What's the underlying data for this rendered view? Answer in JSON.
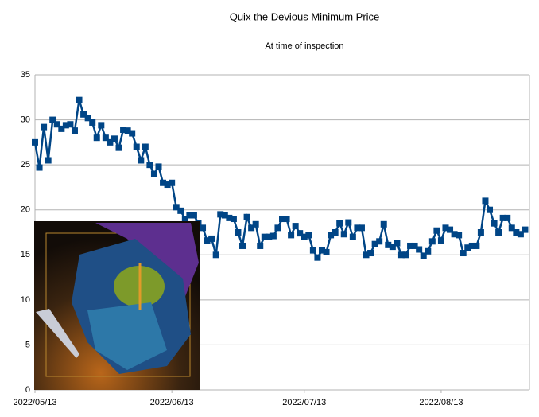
{
  "chart_data": {
    "type": "line",
    "title": "Quix the Devious Minimum Price",
    "subtitle": "At time of inspection",
    "x": [
      "2022/05/13",
      "2022/05/14",
      "2022/05/15",
      "2022/05/16",
      "2022/05/17",
      "2022/05/18",
      "2022/05/19",
      "2022/05/20",
      "2022/05/21",
      "2022/05/22",
      "2022/05/23",
      "2022/05/24",
      "2022/05/25",
      "2022/05/26",
      "2022/05/27",
      "2022/05/28",
      "2022/05/29",
      "2022/05/30",
      "2022/05/31",
      "2022/06/01",
      "2022/06/02",
      "2022/06/03",
      "2022/06/04",
      "2022/06/05",
      "2022/06/06",
      "2022/06/07",
      "2022/06/08",
      "2022/06/09",
      "2022/06/10",
      "2022/06/11",
      "2022/06/12",
      "2022/06/13",
      "2022/06/14",
      "2022/06/15",
      "2022/06/16",
      "2022/06/17",
      "2022/06/18",
      "2022/06/19",
      "2022/06/20",
      "2022/06/21",
      "2022/06/22",
      "2022/06/23",
      "2022/06/24",
      "2022/06/25",
      "2022/06/26",
      "2022/06/27",
      "2022/06/28",
      "2022/06/29",
      "2022/06/30",
      "2022/07/01",
      "2022/07/02",
      "2022/07/03",
      "2022/07/04",
      "2022/07/05",
      "2022/07/06",
      "2022/07/07",
      "2022/07/08",
      "2022/07/09",
      "2022/07/10",
      "2022/07/11",
      "2022/07/12",
      "2022/07/13",
      "2022/07/14",
      "2022/07/15",
      "2022/07/16",
      "2022/07/17",
      "2022/07/18",
      "2022/07/19",
      "2022/07/20",
      "2022/07/21",
      "2022/07/22",
      "2022/07/23",
      "2022/07/24",
      "2022/07/25",
      "2022/07/26",
      "2022/07/27",
      "2022/07/28",
      "2022/07/29",
      "2022/07/30",
      "2022/07/31",
      "2022/08/01",
      "2022/08/02",
      "2022/08/03",
      "2022/08/04",
      "2022/08/05",
      "2022/08/06",
      "2022/08/07",
      "2022/08/08",
      "2022/08/09",
      "2022/08/10",
      "2022/08/11",
      "2022/08/12",
      "2022/08/13",
      "2022/08/14",
      "2022/08/15",
      "2022/08/16",
      "2022/08/17",
      "2022/08/18",
      "2022/08/19",
      "2022/08/20",
      "2022/08/21",
      "2022/08/22",
      "2022/08/23",
      "2022/08/24",
      "2022/08/25",
      "2022/08/26",
      "2022/08/27",
      "2022/08/28",
      "2022/08/29",
      "2022/08/30",
      "2022/08/31",
      "2022/09/01"
    ],
    "series": [
      {
        "color": "#004586",
        "values": [
          27.5,
          24.7,
          29.2,
          25.5,
          30.0,
          29.5,
          29.0,
          29.4,
          29.5,
          28.8,
          32.2,
          30.6,
          30.2,
          29.7,
          28.0,
          29.4,
          28.0,
          27.5,
          27.9,
          26.9,
          28.9,
          28.8,
          28.5,
          27.0,
          25.5,
          27.0,
          25.0,
          24.0,
          24.8,
          23.0,
          22.8,
          23.0,
          20.3,
          19.9,
          19.0,
          19.4,
          19.4,
          18.5,
          18.0,
          16.6,
          16.8,
          15.0,
          19.5,
          19.4,
          19.1,
          19.0,
          17.5,
          16.0,
          19.2,
          18.0,
          18.4,
          16.0,
          17.0,
          17.0,
          17.1,
          18.0,
          19.0,
          19.0,
          17.2,
          18.2,
          17.4,
          17.0,
          17.2,
          15.5,
          14.7,
          15.5,
          15.3,
          17.2,
          17.5,
          18.5,
          17.3,
          18.6,
          17.0,
          18.0,
          18.0,
          15.0,
          15.2,
          16.2,
          16.5,
          18.4,
          16.1,
          15.9,
          16.3,
          15.0,
          15.0,
          16.0,
          16.0,
          15.6,
          14.9,
          15.4,
          16.5,
          17.7,
          16.6,
          18.0,
          17.8,
          17.3,
          17.2,
          15.2,
          15.8,
          16.0,
          16.0,
          17.5,
          21.0,
          20.0,
          18.5,
          17.5,
          19.1,
          19.1,
          18.0,
          17.5,
          17.3,
          17.8
        ]
      }
    ],
    "xlim": [
      "2022/05/13",
      "2022/09/02"
    ],
    "xticks": [
      "2022/05/13",
      "2022/06/13",
      "2022/07/13",
      "2022/08/13"
    ],
    "ylim": [
      0,
      35
    ],
    "yticks": [
      0,
      5,
      10,
      15,
      20,
      25,
      30,
      35
    ],
    "grid": true
  }
}
